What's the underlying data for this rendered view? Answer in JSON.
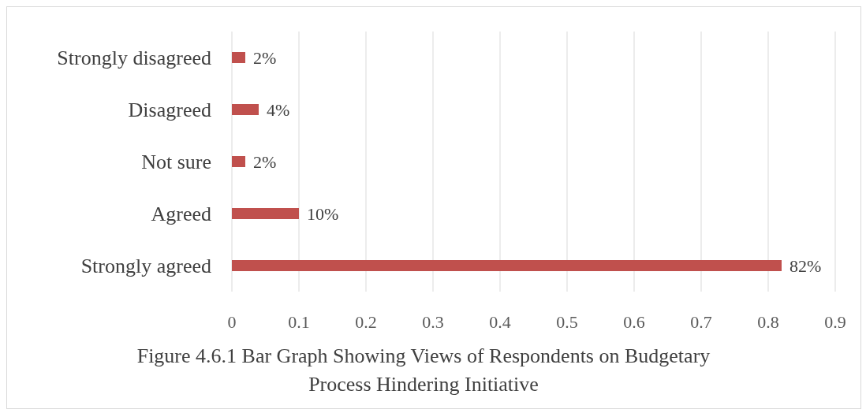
{
  "chart_data": {
    "type": "bar",
    "orientation": "horizontal",
    "title": "Figure 4.6.1 Bar Graph Showing Views of Respondents on Budgetary Process Hindering Initiative",
    "categories": [
      "Strongly disagreed",
      "Disagreed",
      "Not sure",
      "Agreed",
      "Strongly agreed"
    ],
    "values": [
      0.02,
      0.04,
      0.02,
      0.1,
      0.82
    ],
    "value_labels": [
      "2%",
      "4%",
      "2%",
      "10%",
      "82%"
    ],
    "color": "#c0504d",
    "xlim": [
      0,
      0.9
    ],
    "xticks": [
      0,
      0.1,
      0.2,
      0.3,
      0.4,
      0.5,
      0.6,
      0.7,
      0.8,
      0.9
    ],
    "grid": "x"
  }
}
